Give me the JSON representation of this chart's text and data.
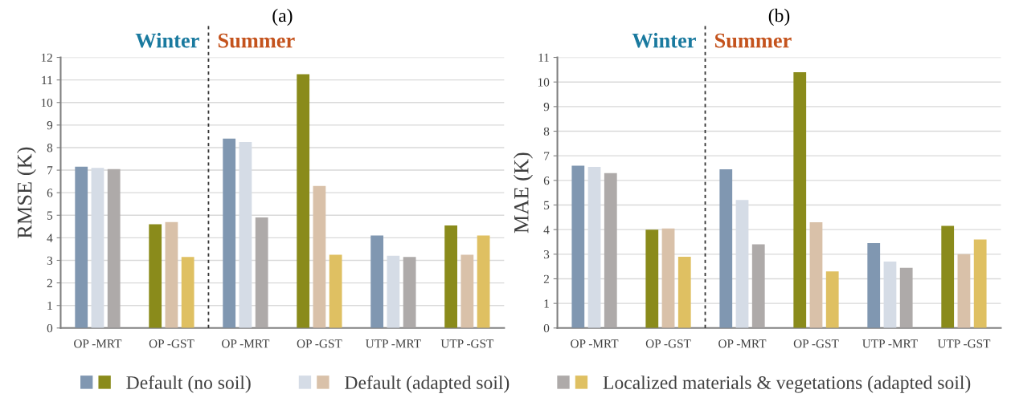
{
  "chart_data": [
    {
      "type": "bar",
      "title": "(a)",
      "ylabel": "RMSE (K)",
      "categories": [
        "OP -MRT",
        "OP -GST",
        "OP -MRT",
        "OP -GST",
        "UTP -MRT",
        "UTP -GST"
      ],
      "series": [
        {
          "name": "Default (no soil)",
          "colors": [
            "#8097b1",
            "#8a8b1b",
            "#8097b1",
            "#8a8b1b",
            "#8097b1",
            "#8a8b1b"
          ],
          "values": [
            7.15,
            4.6,
            8.4,
            11.25,
            4.1,
            4.55
          ]
        },
        {
          "name": "Default (adapted soil)",
          "colors": [
            "#d5dce6",
            "#d9c1a9",
            "#d5dce6",
            "#d9c1a9",
            "#d5dce6",
            "#d9c1a9"
          ],
          "values": [
            7.1,
            4.7,
            8.25,
            6.3,
            3.2,
            3.25
          ]
        },
        {
          "name": "Localized materials & vegetations (adapted soil)",
          "colors": [
            "#aeaaa9",
            "#dfc062",
            "#aeaaa9",
            "#dfc062",
            "#aeaaa9",
            "#dfc062"
          ],
          "values": [
            7.05,
            3.15,
            4.9,
            3.25,
            3.15,
            4.1
          ]
        }
      ],
      "ylim": [
        0,
        12
      ],
      "yticks": [
        0,
        1,
        2,
        3,
        4,
        5,
        6,
        7,
        8,
        9,
        10,
        11,
        12
      ],
      "grid": "y",
      "legend": "bottom",
      "annotations": [
        "Winter",
        "Summer"
      ]
    },
    {
      "type": "bar",
      "title": "(b)",
      "ylabel": "MAE (K)",
      "categories": [
        "OP -MRT",
        "OP -GST",
        "OP -MRT",
        "OP -GST",
        "UTP -MRT",
        "UTP -GST"
      ],
      "series": [
        {
          "colors": [
            "#8097b1",
            "#8a8b1b",
            "#8097b1",
            "#8a8b1b",
            "#8097b1",
            "#8a8b1b"
          ],
          "values": [
            6.6,
            4.0,
            6.45,
            10.4,
            3.45,
            4.15
          ]
        },
        {
          "colors": [
            "#d5dce6",
            "#d9c1a9",
            "#d5dce6",
            "#d9c1a9",
            "#d5dce6",
            "#d9c1a9"
          ],
          "values": [
            6.55,
            4.05,
            5.2,
            4.3,
            2.7,
            3.0
          ]
        },
        {
          "colors": [
            "#aeaaa9",
            "#dfc062",
            "#aeaaa9",
            "#dfc062",
            "#aeaaa9",
            "#dfc062"
          ],
          "values": [
            6.3,
            2.9,
            3.4,
            2.3,
            2.45,
            3.6
          ]
        }
      ],
      "ylim": [
        0,
        11
      ],
      "yticks": [
        0,
        1,
        2,
        3,
        4,
        5,
        6,
        7,
        8,
        9,
        10,
        11
      ],
      "grid": "y",
      "annotations": [
        "Winter",
        "Summer"
      ]
    }
  ]
}
